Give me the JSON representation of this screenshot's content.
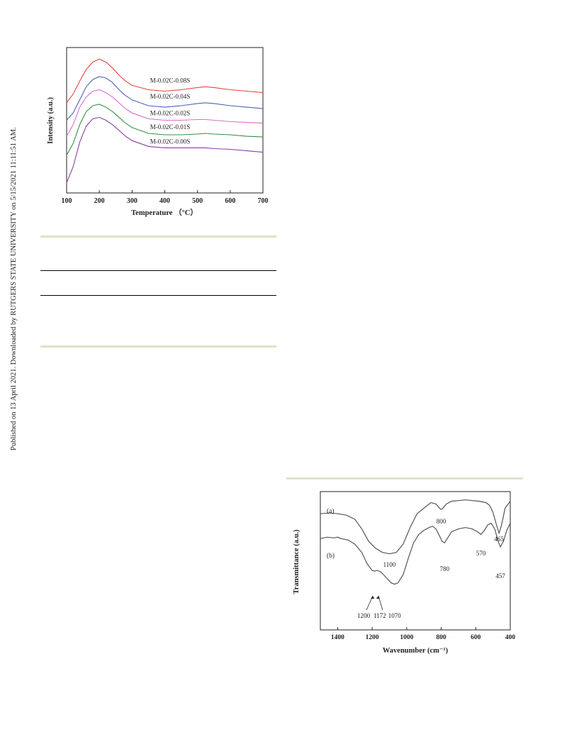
{
  "sidebar": {
    "text": "Published on 13 April 2021. Downloaded by RUTGERS STATE UNIVERSITY on 5/15/2021 11:11:51 AM."
  },
  "colors": {
    "divider": "#e4e0c8",
    "table_rule": "#000000",
    "ink": "#222222"
  },
  "chart_data": [
    {
      "type": "line",
      "xlabel": "Temperature （°C）",
      "ylabel": "Intensity (a.u.)",
      "xlim": [
        100,
        700
      ],
      "x_ticks": [
        "100",
        "200",
        "300",
        "400",
        "500",
        "600",
        "700"
      ],
      "y_ticks_visible": false,
      "grid": false,
      "series": [
        {
          "name": "M-0.02C-0.08S",
          "color": "#e8453c",
          "x": [
            100,
            120,
            140,
            160,
            180,
            200,
            220,
            240,
            260,
            280,
            300,
            350,
            400,
            450,
            500,
            525,
            550,
            600,
            650,
            700
          ],
          "y": [
            0.62,
            0.68,
            0.77,
            0.85,
            0.9,
            0.92,
            0.9,
            0.86,
            0.81,
            0.77,
            0.74,
            0.71,
            0.7,
            0.71,
            0.725,
            0.73,
            0.725,
            0.71,
            0.7,
            0.69
          ]
        },
        {
          "name": "M-0.02C-0.04S",
          "color": "#4a63b8",
          "x": [
            100,
            120,
            140,
            160,
            180,
            200,
            220,
            240,
            260,
            280,
            300,
            350,
            400,
            450,
            500,
            525,
            550,
            600,
            650,
            700
          ],
          "y": [
            0.5,
            0.55,
            0.64,
            0.73,
            0.78,
            0.8,
            0.79,
            0.76,
            0.71,
            0.67,
            0.64,
            0.6,
            0.59,
            0.6,
            0.615,
            0.62,
            0.615,
            0.6,
            0.59,
            0.58
          ]
        },
        {
          "name": "M-0.02C-0.02S",
          "color": "#d56fd0",
          "x": [
            100,
            120,
            140,
            160,
            180,
            200,
            220,
            240,
            260,
            280,
            300,
            350,
            400,
            450,
            500,
            525,
            550,
            600,
            650,
            700
          ],
          "y": [
            0.39,
            0.47,
            0.59,
            0.66,
            0.7,
            0.71,
            0.69,
            0.66,
            0.62,
            0.58,
            0.55,
            0.51,
            0.5,
            0.5,
            0.505,
            0.505,
            0.5,
            0.49,
            0.485,
            0.48
          ]
        },
        {
          "name": "M-0.02C-0.01S",
          "color": "#3a8f45",
          "x": [
            100,
            120,
            140,
            160,
            180,
            200,
            220,
            240,
            260,
            280,
            300,
            350,
            400,
            450,
            500,
            525,
            550,
            600,
            650,
            700
          ],
          "y": [
            0.26,
            0.34,
            0.47,
            0.56,
            0.6,
            0.61,
            0.59,
            0.56,
            0.52,
            0.48,
            0.45,
            0.41,
            0.4,
            0.4,
            0.405,
            0.41,
            0.405,
            0.4,
            0.39,
            0.385
          ]
        },
        {
          "name": "M-0.02C-0.00S",
          "color": "#8a3fa0",
          "x": [
            100,
            120,
            140,
            160,
            180,
            200,
            220,
            240,
            260,
            280,
            300,
            350,
            400,
            450,
            500,
            525,
            550,
            600,
            650,
            700
          ],
          "y": [
            0.07,
            0.18,
            0.35,
            0.46,
            0.51,
            0.52,
            0.5,
            0.47,
            0.43,
            0.39,
            0.36,
            0.32,
            0.31,
            0.31,
            0.31,
            0.31,
            0.305,
            0.3,
            0.29,
            0.28
          ]
        }
      ]
    },
    {
      "type": "line",
      "xlabel": "Wavenumber (cm⁻¹)",
      "ylabel": "Transmittance (a.u.)",
      "xlim": [
        1500,
        400
      ],
      "x_reversed": true,
      "x_ticks": [
        "1400",
        "1200",
        "1000",
        "800",
        "600",
        "400"
      ],
      "y_ticks_visible": false,
      "grid": false,
      "series": [
        {
          "name": "(a)",
          "color": "#555555",
          "x": [
            1500,
            1450,
            1400,
            1350,
            1300,
            1260,
            1220,
            1180,
            1140,
            1100,
            1060,
            1020,
            980,
            940,
            900,
            860,
            830,
            810,
            800,
            790,
            770,
            740,
            700,
            660,
            620,
            580,
            540,
            520,
            500,
            480,
            465,
            450,
            430,
            400
          ],
          "y": [
            0.84,
            0.845,
            0.84,
            0.83,
            0.8,
            0.73,
            0.64,
            0.59,
            0.56,
            0.55,
            0.56,
            0.62,
            0.74,
            0.84,
            0.88,
            0.92,
            0.91,
            0.88,
            0.87,
            0.88,
            0.91,
            0.93,
            0.935,
            0.94,
            0.935,
            0.93,
            0.92,
            0.9,
            0.85,
            0.76,
            0.7,
            0.76,
            0.88,
            0.93
          ]
        },
        {
          "name": "(b)",
          "color": "#555555",
          "x": [
            1500,
            1460,
            1420,
            1400,
            1380,
            1340,
            1300,
            1260,
            1230,
            1200,
            1185,
            1172,
            1150,
            1120,
            1090,
            1070,
            1050,
            1020,
            990,
            960,
            930,
            900,
            870,
            850,
            830,
            810,
            795,
            780,
            765,
            740,
            700,
            660,
            620,
            590,
            570,
            550,
            530,
            510,
            490,
            470,
            457,
            440,
            420,
            400
          ],
          "y": [
            0.66,
            0.67,
            0.665,
            0.67,
            0.66,
            0.65,
            0.62,
            0.56,
            0.48,
            0.43,
            0.425,
            0.43,
            0.42,
            0.38,
            0.34,
            0.33,
            0.34,
            0.4,
            0.52,
            0.63,
            0.69,
            0.72,
            0.74,
            0.75,
            0.73,
            0.68,
            0.64,
            0.63,
            0.66,
            0.71,
            0.73,
            0.74,
            0.73,
            0.71,
            0.69,
            0.72,
            0.76,
            0.77,
            0.73,
            0.64,
            0.6,
            0.64,
            0.72,
            0.77
          ]
        }
      ],
      "annotations": [
        "800",
        "1100",
        "465",
        "780",
        "570",
        "457",
        "1200",
        "1172",
        "1070"
      ]
    }
  ],
  "labels": {
    "tpd_series": [
      "M-0.02C-0.08S",
      "M-0.02C-0.04S",
      "M-0.02C-0.02S",
      "M-0.02C-0.01S",
      "M-0.02C-0.00S"
    ],
    "ir_series": [
      "(a)",
      "(b)"
    ]
  }
}
